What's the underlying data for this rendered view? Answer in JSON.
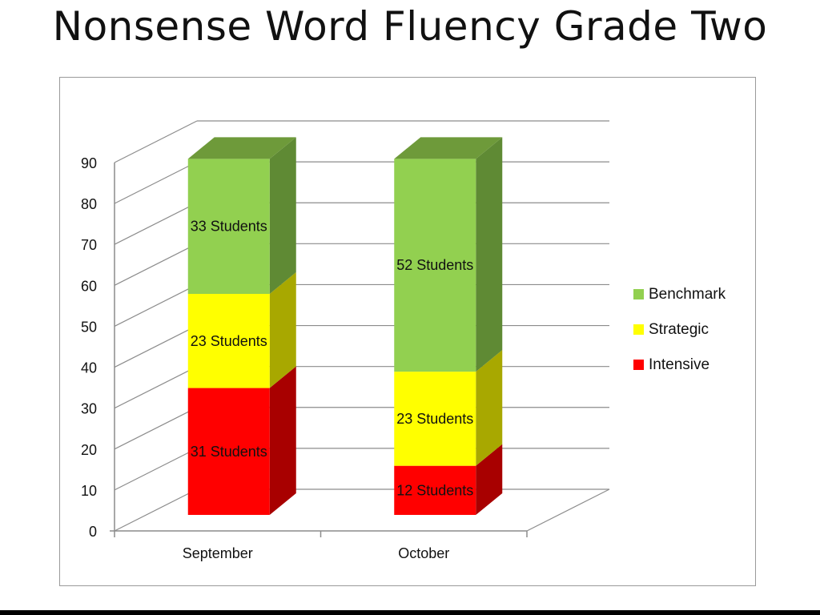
{
  "page": {
    "title": "Nonsense Word Fluency Grade Two"
  },
  "chart_data": {
    "type": "bar",
    "stacked": true,
    "three_d": true,
    "title": "",
    "xlabel": "",
    "ylabel": "",
    "categories": [
      "September",
      "October"
    ],
    "ylim": [
      0,
      90
    ],
    "ytick_step": 10,
    "grid": true,
    "legend_position": "right",
    "series": [
      {
        "name": "Intensive",
        "values": [
          31,
          12
        ],
        "data_labels": [
          "31 Students",
          "12 Students"
        ],
        "color": "#ff0000",
        "side_color": "#a80000",
        "top_color": "#c80000"
      },
      {
        "name": "Strategic",
        "values": [
          23,
          23
        ],
        "data_labels": [
          "23 Students",
          "23 Students"
        ],
        "color": "#ffff00",
        "side_color": "#a8a800",
        "top_color": "#d6d600"
      },
      {
        "name": "Benchmark",
        "values": [
          33,
          52
        ],
        "data_labels": [
          "33 Students",
          "52 Students"
        ],
        "color": "#92d050",
        "side_color": "#5f8a34",
        "top_color": "#6e9a3a"
      }
    ]
  }
}
